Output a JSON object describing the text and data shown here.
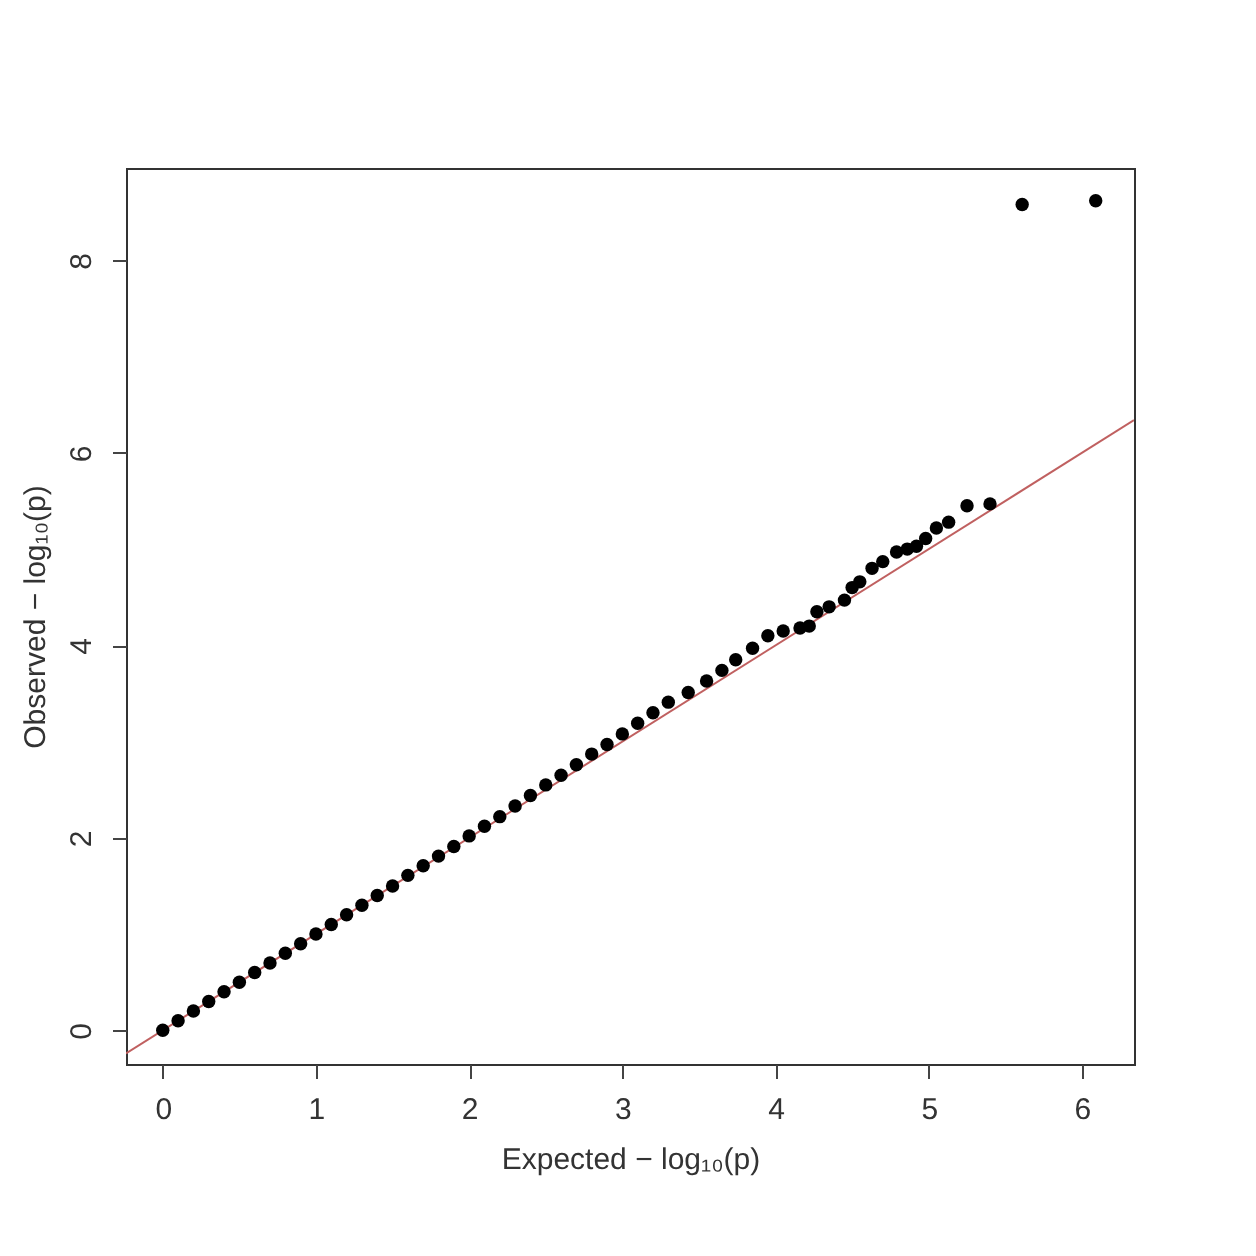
{
  "chart_data": {
    "type": "scatter",
    "xlabel": "Expected  − log₁₀(p)",
    "ylabel": "Observed  − log₁₀(p)",
    "xlim": [
      -0.24,
      6.34
    ],
    "ylim": [
      -0.35,
      8.96
    ],
    "xticks": [
      0,
      1,
      2,
      3,
      4,
      5,
      6
    ],
    "yticks": [
      0,
      2,
      4,
      6,
      8
    ],
    "grid": false,
    "series": [
      {
        "color": "#000000",
        "marker": "circle",
        "x": [
          0,
          0.1,
          0.2,
          0.3,
          0.4,
          0.5,
          0.6,
          0.7,
          0.8,
          0.9,
          1.0,
          1.1,
          1.2,
          1.3,
          1.4,
          1.5,
          1.6,
          1.7,
          1.8,
          1.9,
          2.0,
          2.1,
          2.2,
          2.3,
          2.4,
          2.5,
          2.6,
          2.7,
          2.8,
          2.9,
          3.0,
          3.1,
          3.2,
          3.3,
          3.43,
          3.55,
          3.65,
          3.74,
          3.85,
          3.95,
          4.05,
          4.16,
          4.22,
          4.27,
          4.35,
          4.45,
          4.5,
          4.55,
          4.63,
          4.7,
          4.79,
          4.86,
          4.92,
          4.98,
          5.05,
          5.13,
          5.25,
          5.4,
          5.61,
          6.09
        ],
        "values": [
          0,
          0.1,
          0.2,
          0.3,
          0.4,
          0.5,
          0.6,
          0.7,
          0.8,
          0.9,
          1.0,
          1.1,
          1.2,
          1.3,
          1.4,
          1.5,
          1.61,
          1.71,
          1.81,
          1.91,
          2.02,
          2.12,
          2.22,
          2.33,
          2.44,
          2.55,
          2.65,
          2.76,
          2.87,
          2.97,
          3.08,
          3.19,
          3.3,
          3.41,
          3.51,
          3.63,
          3.74,
          3.85,
          3.97,
          4.1,
          4.15,
          4.18,
          4.2,
          4.35,
          4.4,
          4.47,
          4.6,
          4.66,
          4.8,
          4.87,
          4.97,
          5.0,
          5.03,
          5.11,
          5.22,
          5.28,
          5.45,
          5.47,
          8.58,
          8.62
        ]
      },
      {
        "type": "line",
        "color": "#c06060",
        "x": [
          -0.24,
          6.34
        ],
        "values": [
          -0.24,
          6.34
        ]
      }
    ]
  }
}
